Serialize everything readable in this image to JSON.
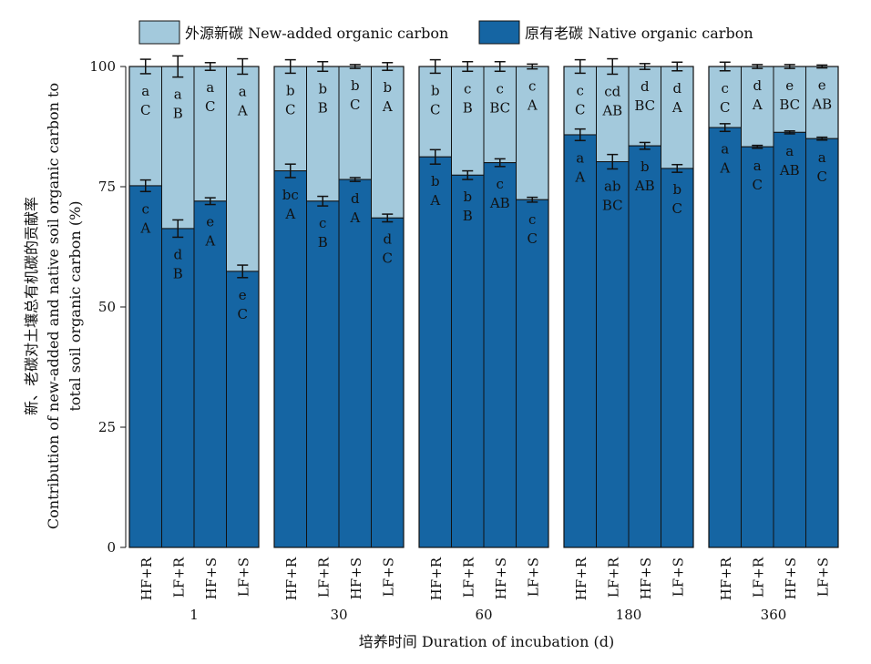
{
  "chart_data": {
    "type": "bar",
    "stacked": true,
    "ylabel_lines": [
      "新、老碳对土壤总有机碳的贡献率",
      "Contribution of new-added and native soil organic carbon to",
      "total soil organic carbon (%)"
    ],
    "xlabel": "培养时间 Duration of incubation (d)",
    "ylim": [
      0,
      100
    ],
    "yticks": [
      0,
      25,
      50,
      75,
      100
    ],
    "legend_position": "top",
    "grid": false,
    "series": [
      {
        "name": "外源新碳 New-added organic carbon",
        "color": "#a3c9dc"
      },
      {
        "name": "原有老碳 Native organic carbon",
        "color": "#1565a3"
      }
    ],
    "groups": [
      {
        "label": "1",
        "bars": [
          {
            "category": "HF+R",
            "native": 75.2,
            "native_err": 1.2,
            "total_err": 1.5,
            "native_letters": [
              "c",
              "A"
            ],
            "new_letters": [
              "a",
              "C"
            ]
          },
          {
            "category": "LF+R",
            "native": 66.3,
            "native_err": 1.8,
            "total_err": 2.2,
            "native_letters": [
              "d",
              "B"
            ],
            "new_letters": [
              "a",
              "B"
            ]
          },
          {
            "category": "HF+S",
            "native": 72.0,
            "native_err": 0.7,
            "total_err": 0.8,
            "native_letters": [
              "e",
              "A"
            ],
            "new_letters": [
              "a",
              "C"
            ]
          },
          {
            "category": "LF+S",
            "native": 57.4,
            "native_err": 1.3,
            "total_err": 1.6,
            "native_letters": [
              "e",
              "C"
            ],
            "new_letters": [
              "a",
              "A"
            ]
          }
        ]
      },
      {
        "label": "30",
        "bars": [
          {
            "category": "HF+R",
            "native": 78.3,
            "native_err": 1.4,
            "total_err": 1.4,
            "native_letters": [
              "bc",
              "A"
            ],
            "new_letters": [
              "b",
              "C"
            ]
          },
          {
            "category": "LF+R",
            "native": 72.0,
            "native_err": 1.0,
            "total_err": 1.0,
            "native_letters": [
              "c",
              "B"
            ],
            "new_letters": [
              "b",
              "B"
            ]
          },
          {
            "category": "HF+S",
            "native": 76.5,
            "native_err": 0.4,
            "total_err": 0.4,
            "native_letters": [
              "d",
              "A"
            ],
            "new_letters": [
              "b",
              "C"
            ]
          },
          {
            "category": "LF+S",
            "native": 68.5,
            "native_err": 0.8,
            "total_err": 0.8,
            "native_letters": [
              "d",
              "C"
            ],
            "new_letters": [
              "b",
              "A"
            ]
          }
        ]
      },
      {
        "label": "60",
        "bars": [
          {
            "category": "HF+R",
            "native": 81.2,
            "native_err": 1.5,
            "total_err": 1.4,
            "native_letters": [
              "b",
              "A"
            ],
            "new_letters": [
              "b",
              "C"
            ]
          },
          {
            "category": "LF+R",
            "native": 77.4,
            "native_err": 0.9,
            "total_err": 1.0,
            "native_letters": [
              "b",
              "B"
            ],
            "new_letters": [
              "c",
              "B"
            ]
          },
          {
            "category": "HF+S",
            "native": 80.0,
            "native_err": 0.8,
            "total_err": 1.0,
            "native_letters": [
              "c",
              "AB"
            ],
            "new_letters": [
              "c",
              "BC"
            ]
          },
          {
            "category": "LF+S",
            "native": 72.3,
            "native_err": 0.5,
            "total_err": 0.5,
            "native_letters": [
              "c",
              "C"
            ],
            "new_letters": [
              "c",
              "A"
            ]
          }
        ]
      },
      {
        "label": "180",
        "bars": [
          {
            "category": "HF+R",
            "native": 85.8,
            "native_err": 1.2,
            "total_err": 1.4,
            "native_letters": [
              "a",
              "A"
            ],
            "new_letters": [
              "c",
              "C"
            ]
          },
          {
            "category": "LF+R",
            "native": 80.2,
            "native_err": 1.5,
            "total_err": 1.6,
            "native_letters": [
              "ab",
              "BC"
            ],
            "new_letters": [
              "cd",
              "AB"
            ]
          },
          {
            "category": "HF+S",
            "native": 83.5,
            "native_err": 0.7,
            "total_err": 0.6,
            "native_letters": [
              "b",
              "AB"
            ],
            "new_letters": [
              "d",
              "BC"
            ]
          },
          {
            "category": "LF+S",
            "native": 78.8,
            "native_err": 0.8,
            "total_err": 0.9,
            "native_letters": [
              "b",
              "C"
            ],
            "new_letters": [
              "d",
              "A"
            ]
          }
        ]
      },
      {
        "label": "360",
        "bars": [
          {
            "category": "HF+R",
            "native": 87.3,
            "native_err": 0.8,
            "total_err": 0.9,
            "native_letters": [
              "a",
              "A"
            ],
            "new_letters": [
              "c",
              "C"
            ]
          },
          {
            "category": "LF+R",
            "native": 83.3,
            "native_err": 0.3,
            "total_err": 0.4,
            "native_letters": [
              "a",
              "C"
            ],
            "new_letters": [
              "d",
              "A"
            ]
          },
          {
            "category": "HF+S",
            "native": 86.3,
            "native_err": 0.3,
            "total_err": 0.4,
            "native_letters": [
              "a",
              "AB"
            ],
            "new_letters": [
              "e",
              "BC"
            ]
          },
          {
            "category": "LF+S",
            "native": 85.0,
            "native_err": 0.3,
            "total_err": 0.3,
            "native_letters": [
              "a",
              "C"
            ],
            "new_letters": [
              "e",
              "AB"
            ]
          }
        ]
      }
    ]
  }
}
